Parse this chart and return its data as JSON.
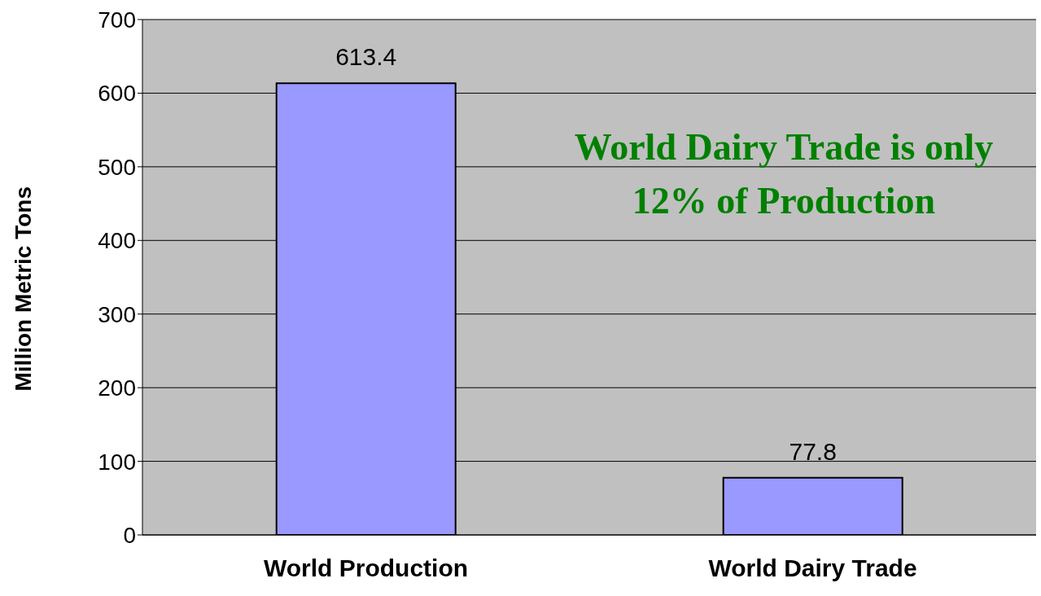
{
  "chart_data": {
    "type": "bar",
    "categories": [
      "World Production",
      "World Dairy Trade"
    ],
    "values": [
      613.4,
      77.8
    ],
    "color": "#9999ff",
    "ylabel": "Million Metric Tons",
    "ylim": [
      0,
      700
    ],
    "yticks": [
      0,
      100,
      200,
      300,
      400,
      500,
      600,
      700
    ],
    "grid": "y",
    "data_labels": true,
    "annotations": [
      "World Dairy Trade is only 12% of Production"
    ]
  }
}
